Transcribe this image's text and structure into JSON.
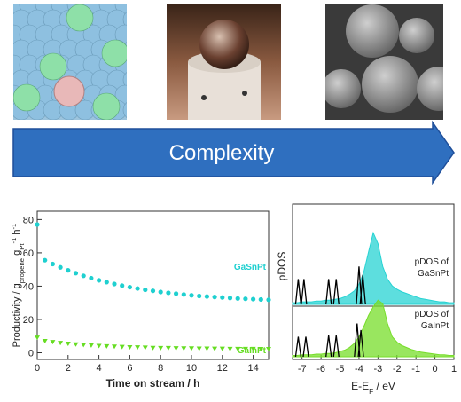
{
  "banner": {
    "label": "Complexity"
  },
  "chart_data": [
    {
      "type": "scatter",
      "xlabel": "Time on stream / h",
      "ylabel": [
        "Productivity / g",
        "propene",
        " g",
        "Pt",
        "-1",
        " h",
        "-1"
      ],
      "xlim": [
        0,
        15
      ],
      "xticks": [
        0,
        2,
        4,
        6,
        8,
        10,
        12,
        14
      ],
      "ylim": [
        -4,
        85
      ],
      "yticks": [
        0,
        20,
        40,
        60,
        80
      ],
      "x": [
        0,
        0.5,
        1,
        1.5,
        2,
        2.5,
        3,
        3.5,
        4,
        4.5,
        5,
        5.5,
        6,
        6.5,
        7,
        7.5,
        8,
        8.5,
        9,
        9.5,
        10,
        10.5,
        11,
        11.5,
        12,
        12.5,
        13,
        13.5,
        14,
        14.5,
        15
      ],
      "series": [
        {
          "name": "GaSnPt",
          "color": "#1fd0d0",
          "marker": "circle",
          "values": [
            77,
            55.6,
            53.3,
            51.3,
            49.5,
            47.8,
            46.2,
            44.8,
            43.5,
            42.4,
            41.3,
            40.3,
            39.4,
            38.6,
            37.8,
            37.2,
            36.5,
            36.0,
            35.5,
            35.0,
            34.5,
            34.1,
            33.8,
            33.5,
            33.2,
            32.9,
            32.6,
            32.4,
            32.2,
            32.0,
            31.8
          ]
        },
        {
          "name": "GaInPt",
          "color": "#66dd22",
          "marker": "triangle",
          "values": [
            9,
            6.9,
            6.3,
            5.8,
            5.3,
            4.9,
            4.6,
            4.3,
            4.0,
            3.8,
            3.6,
            3.4,
            3.2,
            3.1,
            3.0,
            2.8,
            2.7,
            2.7,
            2.6,
            2.5,
            2.5,
            2.4,
            2.4,
            2.3,
            2.3,
            2.2,
            2.2,
            2.2,
            2.2,
            2.1,
            2.1
          ]
        }
      ]
    },
    {
      "type": "area",
      "ylabel": "pDOS",
      "xlabel": [
        "E-E",
        "F",
        " / eV"
      ],
      "xlim": [
        -7.5,
        1
      ],
      "xticks": [
        -7,
        -6,
        -5,
        -4,
        -3,
        -2,
        -1,
        0,
        1
      ],
      "x": [
        -7.5,
        -7.25,
        -7,
        -6.75,
        -6.5,
        -6.25,
        -6,
        -5.75,
        -5.5,
        -5.25,
        -5,
        -4.75,
        -4.5,
        -4.25,
        -4,
        -3.75,
        -3.5,
        -3.25,
        -3,
        -2.75,
        -2.5,
        -2.25,
        -2,
        -1.75,
        -1.5,
        -1.25,
        -1,
        -0.75,
        -0.5,
        -0.25,
        0,
        0.25,
        0.5,
        0.75,
        1
      ],
      "panels": [
        {
          "label": [
            "pDOS of",
            "GaSnPt"
          ],
          "color": "#27d3d3",
          "ylim": [
            0,
            1
          ],
          "values": [
            0.02,
            0.02,
            0.03,
            0.03,
            0.03,
            0.04,
            0.04,
            0.05,
            0.05,
            0.06,
            0.07,
            0.09,
            0.12,
            0.16,
            0.24,
            0.38,
            0.62,
            0.85,
            0.72,
            0.45,
            0.3,
            0.22,
            0.18,
            0.15,
            0.13,
            0.11,
            0.09,
            0.07,
            0.06,
            0.05,
            0.04,
            0.03,
            0.03,
            0.02,
            0.02
          ],
          "peaks_x": [
            -7.2,
            -6.9,
            -5.6,
            -5.2,
            -4.0,
            -3.8
          ],
          "peaks_y": [
            0.3,
            0.3,
            0.3,
            0.3,
            0.45,
            0.35
          ]
        },
        {
          "label": [
            "pDOS of",
            "GaInPt"
          ],
          "color": "#77dd2a",
          "ylim": [
            0,
            1
          ],
          "values": [
            0.02,
            0.02,
            0.03,
            0.03,
            0.03,
            0.04,
            0.04,
            0.05,
            0.05,
            0.06,
            0.08,
            0.1,
            0.14,
            0.2,
            0.3,
            0.45,
            0.62,
            0.75,
            0.85,
            0.8,
            0.5,
            0.3,
            0.22,
            0.17,
            0.14,
            0.11,
            0.09,
            0.07,
            0.06,
            0.05,
            0.04,
            0.03,
            0.03,
            0.02,
            0.02
          ],
          "peaks_x": [
            -7.2,
            -6.8,
            -5.6,
            -5.2,
            -4.1,
            -3.9
          ],
          "peaks_y": [
            0.3,
            0.3,
            0.32,
            0.32,
            0.5,
            0.4
          ]
        }
      ]
    }
  ]
}
